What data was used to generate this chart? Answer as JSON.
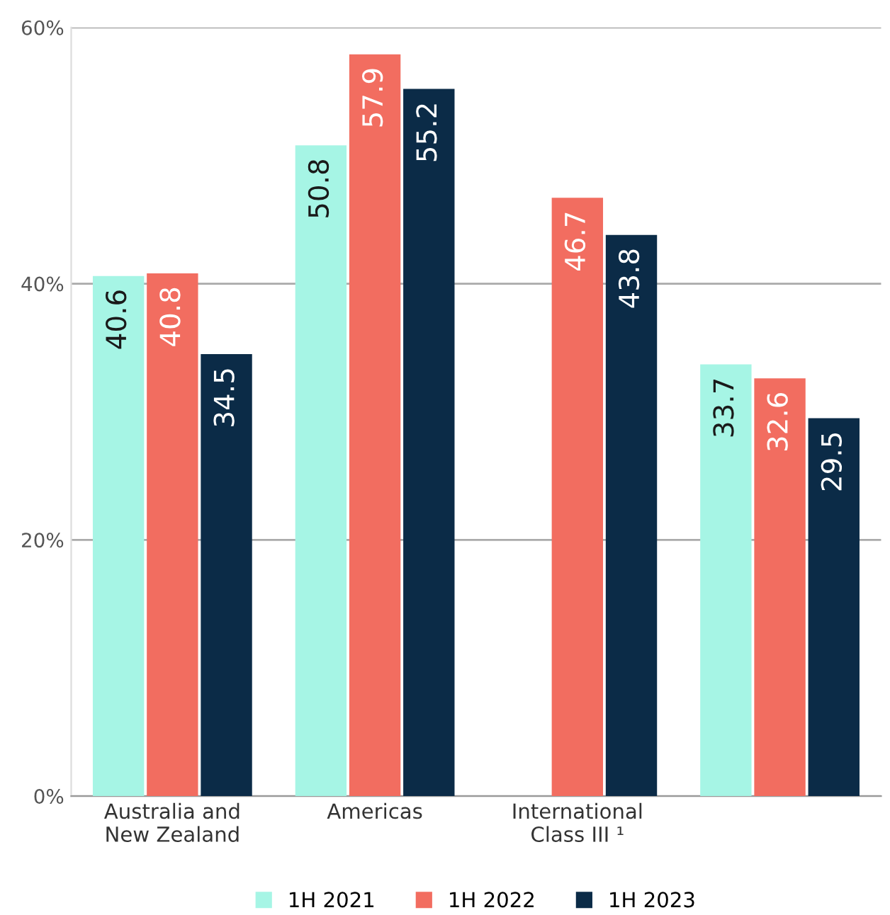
{
  "chart_data": {
    "type": "bar",
    "categories": [
      "Australia and\nNew Zealand",
      "Americas",
      "International\nClass III ¹",
      null
    ],
    "series": [
      {
        "name": "1H 2021",
        "color": "#a6f5e5",
        "values": [
          40.6,
          50.8,
          null,
          33.7
        ]
      },
      {
        "name": "1H 2022",
        "color": "#f26d60",
        "values": [
          40.8,
          57.9,
          46.7,
          32.6
        ]
      },
      {
        "name": "1H 2023",
        "color": "#0b2b47",
        "values": [
          34.5,
          55.2,
          43.8,
          29.5
        ]
      }
    ],
    "ylim": [
      0,
      60
    ],
    "yticks": [
      {
        "value": 0,
        "label": "0%"
      },
      {
        "value": 20,
        "label": "20%"
      },
      {
        "value": 40,
        "label": "40%"
      },
      {
        "value": 60,
        "label": "60%"
      }
    ],
    "grid": "y",
    "legend": "bottom",
    "data_labels": true
  }
}
